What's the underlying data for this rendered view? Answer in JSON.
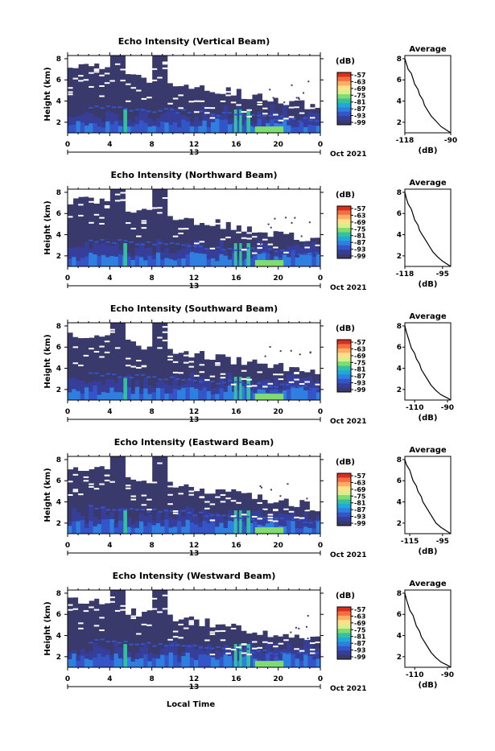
{
  "figure": {
    "xlabel": "Local Time",
    "date_label": "Oct 2021",
    "day_label": "13",
    "colorbar_unit": "(dB)",
    "colorbar_ticks": [
      "-57",
      "-63",
      "-69",
      "-75",
      "-81",
      "-87",
      "-93",
      "-99"
    ],
    "colorbar_colors": [
      "#d7301f",
      "#f46d43",
      "#fdae61",
      "#fee08b",
      "#d9ef8b",
      "#7fdc6f",
      "#35c1a0",
      "#1fa9d8",
      "#2f7fe0",
      "#3355c8",
      "#363e9a",
      "#39396b"
    ],
    "background_color": "#39396b",
    "gap_color": "#ffffff"
  },
  "chart_data": [
    {
      "type": "heatmap",
      "title": "Echo Intensity (Vertical Beam)",
      "ylabel": "Height (km)",
      "xlabel": "Local Time",
      "x_ticks": [
        "0",
        "4",
        "8",
        "12",
        "16",
        "20",
        "0"
      ],
      "y_ticks": [
        "2",
        "4",
        "6",
        "8"
      ],
      "xlim": [
        0,
        24
      ],
      "ylim": [
        1,
        8.3
      ],
      "units": "dB",
      "value_range": [
        -99,
        -57
      ],
      "average_profile": {
        "title": "Average",
        "xlabel": "(dB)",
        "x_ticks": [
          "-118",
          "-90"
        ],
        "xlim": [
          -118,
          -90
        ],
        "y_ticks": [
          "2",
          "4",
          "6",
          "8"
        ],
        "ylim": [
          1,
          8.3
        ],
        "points": [
          [
            -118,
            8.0
          ],
          [
            -117,
            7.5
          ],
          [
            -116,
            7.0
          ],
          [
            -114,
            6.6
          ],
          [
            -113,
            6.1
          ],
          [
            -112,
            5.6
          ],
          [
            -110,
            5.1
          ],
          [
            -109,
            4.6
          ],
          [
            -107,
            4.1
          ],
          [
            -106,
            3.6
          ],
          [
            -104,
            3.1
          ],
          [
            -102,
            2.6
          ],
          [
            -99,
            2.1
          ],
          [
            -96,
            1.6
          ],
          [
            -92,
            1.2
          ],
          [
            -90,
            1.0
          ]
        ]
      }
    },
    {
      "type": "heatmap",
      "title": "Echo Intensity (Northward Beam)",
      "ylabel": "Height (km)",
      "xlabel": "Local Time",
      "x_ticks": [
        "0",
        "4",
        "8",
        "12",
        "16",
        "20",
        "0"
      ],
      "y_ticks": [
        "2",
        "4",
        "6",
        "8"
      ],
      "xlim": [
        0,
        24
      ],
      "ylim": [
        1,
        8.3
      ],
      "units": "dB",
      "value_range": [
        -99,
        -57
      ],
      "average_profile": {
        "title": "Average",
        "xlabel": "(dB)",
        "x_ticks": [
          "-118",
          "-95"
        ],
        "xlim": [
          -118,
          -90
        ],
        "y_ticks": [
          "2",
          "4",
          "6",
          "8"
        ],
        "ylim": [
          1,
          8.3
        ],
        "points": [
          [
            -118,
            8.0
          ],
          [
            -117,
            7.4
          ],
          [
            -116,
            6.9
          ],
          [
            -114,
            6.4
          ],
          [
            -113,
            5.9
          ],
          [
            -112,
            5.4
          ],
          [
            -110,
            4.9
          ],
          [
            -109,
            4.4
          ],
          [
            -107,
            3.9
          ],
          [
            -105,
            3.4
          ],
          [
            -103,
            2.9
          ],
          [
            -101,
            2.4
          ],
          [
            -98,
            1.9
          ],
          [
            -95,
            1.5
          ],
          [
            -92,
            1.2
          ],
          [
            -90,
            1.0
          ]
        ]
      }
    },
    {
      "type": "heatmap",
      "title": "Echo Intensity (Southward Beam)",
      "ylabel": "Height (km)",
      "xlabel": "Local Time",
      "x_ticks": [
        "0",
        "4",
        "8",
        "12",
        "16",
        "20",
        "0"
      ],
      "y_ticks": [
        "2",
        "4",
        "6",
        "8"
      ],
      "xlim": [
        0,
        24
      ],
      "ylim": [
        1,
        8.3
      ],
      "units": "dB",
      "value_range": [
        -99,
        -57
      ],
      "average_profile": {
        "title": "Average",
        "xlabel": "(dB)",
        "x_ticks": [
          "-110",
          "-90"
        ],
        "xlim": [
          -116,
          -88
        ],
        "y_ticks": [
          "2",
          "4",
          "6",
          "8"
        ],
        "ylim": [
          1,
          8.3
        ],
        "points": [
          [
            -116,
            8.0
          ],
          [
            -115,
            7.4
          ],
          [
            -114,
            6.9
          ],
          [
            -113,
            6.4
          ],
          [
            -112,
            5.9
          ],
          [
            -110,
            5.4
          ],
          [
            -109,
            4.9
          ],
          [
            -107,
            4.4
          ],
          [
            -106,
            3.9
          ],
          [
            -104,
            3.4
          ],
          [
            -102,
            2.9
          ],
          [
            -100,
            2.4
          ],
          [
            -97,
            1.9
          ],
          [
            -94,
            1.5
          ],
          [
            -90,
            1.2
          ],
          [
            -88,
            1.0
          ]
        ]
      }
    },
    {
      "type": "heatmap",
      "title": "Echo Intensity (Eastward Beam)",
      "ylabel": "Height (km)",
      "xlabel": "Local Time",
      "x_ticks": [
        "0",
        "4",
        "8",
        "12",
        "16",
        "20",
        "0"
      ],
      "y_ticks": [
        "2",
        "4",
        "6",
        "8"
      ],
      "xlim": [
        0,
        24
      ],
      "ylim": [
        1,
        8.3
      ],
      "units": "dB",
      "value_range": [
        -99,
        -57
      ],
      "average_profile": {
        "title": "Average",
        "xlabel": "(dB)",
        "x_ticks": [
          "-115",
          "-95"
        ],
        "xlim": [
          -118,
          -90
        ],
        "y_ticks": [
          "2",
          "4",
          "6",
          "8"
        ],
        "ylim": [
          1,
          8.3
        ],
        "points": [
          [
            -118,
            8.0
          ],
          [
            -117,
            7.5
          ],
          [
            -115,
            7.0
          ],
          [
            -114,
            6.5
          ],
          [
            -113,
            6.0
          ],
          [
            -111,
            5.5
          ],
          [
            -110,
            5.0
          ],
          [
            -108,
            4.5
          ],
          [
            -107,
            4.0
          ],
          [
            -105,
            3.5
          ],
          [
            -103,
            3.0
          ],
          [
            -101,
            2.5
          ],
          [
            -99,
            2.0
          ],
          [
            -96,
            1.6
          ],
          [
            -92,
            1.2
          ],
          [
            -90,
            1.0
          ]
        ]
      }
    },
    {
      "type": "heatmap",
      "title": "Echo Intensity (Westward Beam)",
      "ylabel": "Height (km)",
      "xlabel": "Local Time",
      "x_ticks": [
        "0",
        "4",
        "8",
        "12",
        "16",
        "20",
        "0"
      ],
      "y_ticks": [
        "2",
        "4",
        "6",
        "8"
      ],
      "xlim": [
        0,
        24
      ],
      "ylim": [
        1,
        8.3
      ],
      "units": "dB",
      "value_range": [
        -99,
        -57
      ],
      "average_profile": {
        "title": "Average",
        "xlabel": "(dB)",
        "x_ticks": [
          "-110",
          "-90"
        ],
        "xlim": [
          -116,
          -88
        ],
        "y_ticks": [
          "2",
          "4",
          "6",
          "8"
        ],
        "ylim": [
          1,
          8.3
        ],
        "points": [
          [
            -116,
            8.0
          ],
          [
            -115,
            7.4
          ],
          [
            -114,
            6.9
          ],
          [
            -113,
            6.4
          ],
          [
            -111,
            5.9
          ],
          [
            -110,
            5.4
          ],
          [
            -109,
            4.9
          ],
          [
            -107,
            4.4
          ],
          [
            -106,
            3.9
          ],
          [
            -104,
            3.4
          ],
          [
            -102,
            2.9
          ],
          [
            -100,
            2.4
          ],
          [
            -97,
            1.9
          ],
          [
            -94,
            1.5
          ],
          [
            -90,
            1.2
          ],
          [
            -88,
            1.0
          ]
        ]
      }
    }
  ]
}
